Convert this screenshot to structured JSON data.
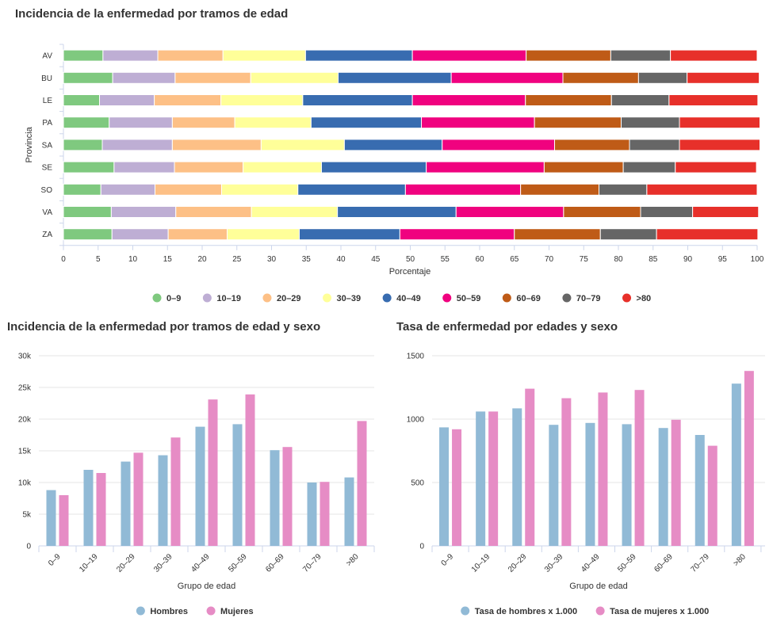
{
  "chart_data": [
    {
      "type": "bar",
      "orientation": "horizontal",
      "stacked": true,
      "title": "Incidencia de la enfermedad por tramos de edad",
      "xlabel": "Porcentaje",
      "ylabel": "Provincia",
      "xlim": [
        0,
        100
      ],
      "xticks": [
        "0",
        "5",
        "10",
        "15",
        "20",
        "25",
        "30",
        "35",
        "40",
        "45",
        "50",
        "55",
        "60",
        "65",
        "70",
        "75",
        "80",
        "85",
        "90",
        "95",
        "100"
      ],
      "categories": [
        "AV",
        "BU",
        "LE",
        "PA",
        "SA",
        "SE",
        "SO",
        "VA",
        "ZA"
      ],
      "legend_position": "bottom",
      "series": [
        {
          "name": "0–9",
          "color": "#7fc97f",
          "values": [
            5.7,
            7.1,
            5.2,
            6.6,
            5.6,
            7.3,
            5.4,
            6.9,
            7.0
          ]
        },
        {
          "name": "10–19",
          "color": "#beaed4",
          "values": [
            7.9,
            9.0,
            7.9,
            9.1,
            10.1,
            8.7,
            7.8,
            9.3,
            8.1
          ]
        },
        {
          "name": "20–29",
          "color": "#fdc086",
          "values": [
            9.4,
            10.9,
            9.6,
            9.0,
            12.8,
            9.9,
            9.6,
            10.9,
            8.5
          ]
        },
        {
          "name": "30–39",
          "color": "#ffff99",
          "values": [
            11.9,
            12.6,
            11.8,
            11.0,
            12.0,
            11.3,
            11.0,
            12.4,
            10.4
          ]
        },
        {
          "name": "40–49",
          "color": "#386cb0",
          "values": [
            15.4,
            16.3,
            15.8,
            15.9,
            14.1,
            15.1,
            15.5,
            17.1,
            14.5
          ]
        },
        {
          "name": "50–59",
          "color": "#f0027f",
          "values": [
            16.4,
            16.1,
            16.3,
            16.3,
            16.2,
            17.0,
            16.6,
            15.5,
            16.5
          ]
        },
        {
          "name": "60–69",
          "color": "#bf5b17",
          "values": [
            12.2,
            10.9,
            12.4,
            12.5,
            10.8,
            11.4,
            11.3,
            11.1,
            12.4
          ]
        },
        {
          "name": "70–79",
          "color": "#666666",
          "values": [
            8.6,
            7.0,
            8.3,
            8.4,
            7.2,
            7.5,
            6.9,
            7.5,
            8.1
          ]
        },
        {
          "name": ">80",
          "color": "#e7302a",
          "values": [
            12.5,
            10.4,
            12.8,
            11.6,
            11.6,
            11.7,
            15.9,
            9.5,
            14.6
          ]
        }
      ]
    },
    {
      "type": "bar",
      "title": "Incidencia de la enfermedad por tramos de edad y sexo",
      "xlabel": "Grupo de edad",
      "ylabel": "",
      "ylim": [
        0,
        30000
      ],
      "yticks": [
        "0",
        "5k",
        "10k",
        "15k",
        "20k",
        "25k",
        "30k"
      ],
      "categories": [
        "0–9",
        "10–19",
        "20–29",
        "30–39",
        "40–49",
        "50–59",
        "60–69",
        "70–79",
        ">80"
      ],
      "legend_position": "bottom",
      "series": [
        {
          "name": "Hombres",
          "color": "#91bad6",
          "values": [
            8800,
            12000,
            13300,
            14300,
            18800,
            19200,
            15100,
            10000,
            10800
          ]
        },
        {
          "name": "Mujeres",
          "color": "#e68cc5",
          "values": [
            8000,
            11500,
            14700,
            17100,
            23100,
            23900,
            15600,
            10100,
            19700
          ]
        }
      ]
    },
    {
      "type": "bar",
      "title": "Tasa de enfermedad por edades y sexo",
      "xlabel": "Grupo de edad",
      "ylabel": "",
      "ylim": [
        0,
        1500
      ],
      "yticks": [
        "0",
        "500",
        "1000",
        "1500"
      ],
      "categories": [
        "0–9",
        "10–19",
        "20–29",
        "30–39",
        "40–49",
        "50–59",
        "60–69",
        "70–79",
        ">80"
      ],
      "legend_position": "bottom",
      "series": [
        {
          "name": "Tasa de hombres x 1.000",
          "color": "#91bad6",
          "values": [
            935,
            1060,
            1085,
            955,
            970,
            960,
            930,
            875,
            1280
          ]
        },
        {
          "name": "Tasa de mujeres x 1.000",
          "color": "#e68cc5",
          "values": [
            920,
            1060,
            1240,
            1165,
            1210,
            1230,
            995,
            790,
            1380
          ]
        }
      ]
    }
  ]
}
